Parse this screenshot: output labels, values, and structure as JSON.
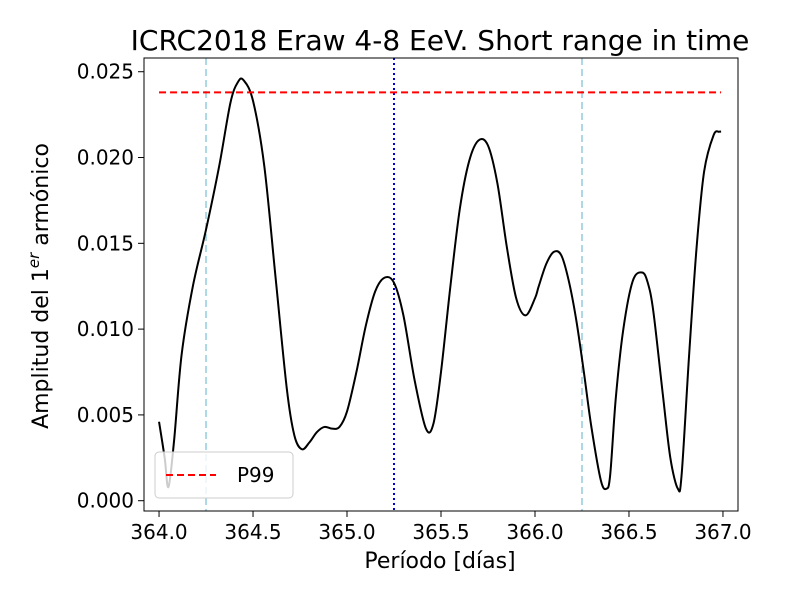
{
  "chart_data": {
    "type": "line",
    "title": "ICRC2018 Eraw 4-8 EeV. Short range in time",
    "xlabel": "Período [días]",
    "ylabel": {
      "prefix": "Amplitud del 1",
      "superscript": "er",
      "suffix": " armónico"
    },
    "xlim": [
      363.92,
      367.08
    ],
    "ylim": [
      -0.0006,
      0.0258
    ],
    "xticks": [
      364.0,
      364.5,
      365.0,
      365.5,
      366.0,
      366.5,
      367.0
    ],
    "xtick_labels": [
      "364.0",
      "364.5",
      "365.0",
      "365.5",
      "366.0",
      "366.5",
      "367.0"
    ],
    "yticks": [
      0.0,
      0.005,
      0.01,
      0.015,
      0.02,
      0.025
    ],
    "ytick_labels": [
      "0.000",
      "0.005",
      "0.010",
      "0.015",
      "0.020",
      "0.025"
    ],
    "grid": false,
    "legend": {
      "position": "lower-left",
      "entries": [
        "P99"
      ]
    },
    "series": [
      {
        "color": "#000000",
        "style": "solid",
        "x": [
          364.0,
          364.03,
          364.05,
          364.08,
          364.12,
          364.18,
          364.25,
          364.32,
          364.38,
          364.42,
          364.45,
          364.5,
          364.56,
          364.62,
          364.68,
          364.72,
          364.76,
          364.8,
          364.84,
          364.88,
          364.92,
          364.96,
          365.0,
          365.05,
          365.1,
          365.15,
          365.2,
          365.25,
          365.3,
          365.36,
          365.42,
          365.46,
          365.5,
          365.55,
          365.6,
          365.65,
          365.7,
          365.75,
          365.8,
          365.85,
          365.9,
          365.95,
          366.0,
          366.02,
          366.06,
          366.1,
          366.14,
          366.18,
          366.22,
          366.26,
          366.3,
          366.35,
          366.38,
          366.4,
          366.43,
          366.47,
          366.52,
          366.57,
          366.6,
          366.63,
          366.68,
          366.72,
          366.76,
          366.78,
          366.82,
          366.86,
          366.9,
          366.95,
          366.98,
          366.99
        ],
        "y": [
          0.0046,
          0.0025,
          0.0008,
          0.0035,
          0.0085,
          0.0125,
          0.0158,
          0.0195,
          0.0232,
          0.0244,
          0.0245,
          0.0233,
          0.0195,
          0.013,
          0.0065,
          0.0038,
          0.003,
          0.0034,
          0.004,
          0.0043,
          0.0042,
          0.0043,
          0.0052,
          0.0075,
          0.0102,
          0.0122,
          0.013,
          0.0127,
          0.0108,
          0.007,
          0.0042,
          0.0045,
          0.0075,
          0.0125,
          0.017,
          0.0198,
          0.021,
          0.0207,
          0.0185,
          0.0148,
          0.0118,
          0.0108,
          0.0118,
          0.0125,
          0.0138,
          0.0145,
          0.0143,
          0.0128,
          0.0105,
          0.0075,
          0.0043,
          0.0012,
          0.0007,
          0.0015,
          0.006,
          0.01,
          0.0128,
          0.0133,
          0.0127,
          0.011,
          0.0062,
          0.0025,
          0.0007,
          0.0015,
          0.0085,
          0.0148,
          0.0192,
          0.0213,
          0.0215,
          0.0215
        ]
      },
      {
        "name": "P99",
        "color": "#ff0000",
        "style": "dashed",
        "x": [
          364.0,
          366.99
        ],
        "y": [
          0.0238,
          0.0238
        ]
      }
    ],
    "vlines": [
      {
        "x": 364.25,
        "color": "#add8e6",
        "style": "dashed"
      },
      {
        "x": 365.25,
        "color": "#0000cd",
        "style": "dotted"
      },
      {
        "x": 366.25,
        "color": "#add8e6",
        "style": "dashed"
      }
    ]
  }
}
